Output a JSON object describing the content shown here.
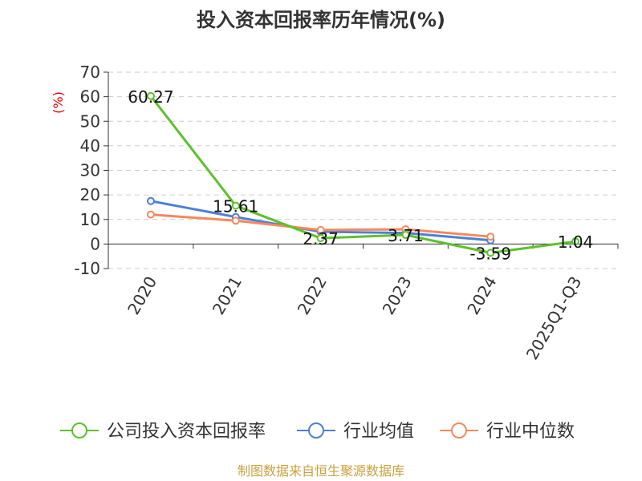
{
  "chart_data": {
    "type": "line",
    "title": "投入资本回报率历年情况(%)",
    "ylabel": "(%)",
    "categories": [
      "2020",
      "2021",
      "2022",
      "2023",
      "2024",
      "2025Q1-Q3"
    ],
    "ylim": [
      -10,
      70
    ],
    "yticks": [
      -10,
      0,
      10,
      20,
      30,
      40,
      50,
      60,
      70
    ],
    "grid": true,
    "legend_position": "bottom",
    "series": [
      {
        "name": "公司投入资本回报率",
        "color": "#5cc22a",
        "values": [
          60.27,
          15.61,
          2.37,
          3.71,
          -3.59,
          1.04
        ],
        "labels": [
          "60.27",
          "15.61",
          "2.37",
          "3.71",
          "-3.59",
          "1.04"
        ]
      },
      {
        "name": "行业均值",
        "color": "#4e7fd9",
        "values": [
          17.5,
          11.0,
          5.0,
          4.5,
          1.5,
          null
        ],
        "labels": null
      },
      {
        "name": "行业中位数",
        "color": "#f5895a",
        "values": [
          12.0,
          9.5,
          5.7,
          6.0,
          3.0,
          null
        ],
        "labels": null
      }
    ]
  },
  "source": "制图数据来自恒生聚源数据库"
}
